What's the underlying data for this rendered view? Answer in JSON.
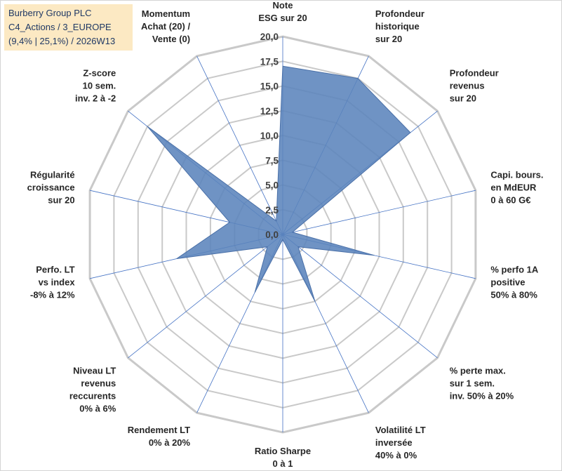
{
  "legend_box": {
    "line1": "Burberry Group PLC",
    "line2": "C4_Actions / 3_EUROPE",
    "line3": "(9,4% | 25,1%) / 2026W13"
  },
  "colors": {
    "fill": "#5b84bc",
    "stroke": "#4a70a8",
    "grid": "#c9c9c9",
    "spoke": "#4472c4",
    "title_bg": "#fce9c3",
    "title_text": "#1f3864"
  },
  "chart_data": {
    "type": "radar",
    "title": "Burberry Group PLC",
    "rlim": [
      0,
      20
    ],
    "ticks": [
      "0,0",
      "2,5",
      "5,0",
      "7,5",
      "10,0",
      "12,5",
      "15,0",
      "17,5",
      "20,0"
    ],
    "tick_values": [
      0,
      2.5,
      5,
      7.5,
      10,
      12.5,
      15,
      17.5,
      20
    ],
    "axes": [
      {
        "label": [
          "Note",
          "ESG sur 20"
        ],
        "value": 17.0
      },
      {
        "label": [
          "Profondeur",
          "historique",
          "sur 20"
        ],
        "value": 17.5
      },
      {
        "label": [
          "Profondeur",
          "revenus",
          "sur 20"
        ],
        "value": 16.5
      },
      {
        "label": [
          "Capi. bours.",
          "en MdEUR",
          "0 à 60 G€"
        ],
        "value": 1.0
      },
      {
        "label": [
          "% perfo 1A",
          "positive",
          "50% à 80%"
        ],
        "value": 9.5
      },
      {
        "label": [
          "% perte max.",
          "sur 1 sem.",
          "inv. 50% à 20%"
        ],
        "value": 2.0
      },
      {
        "label": [
          "Volatilité LT",
          "inversée",
          "40% à 0%"
        ],
        "value": 7.5
      },
      {
        "label": [
          "Ratio Sharpe",
          "0 à 1"
        ],
        "value": 0.5
      },
      {
        "label": [
          "Rendement LT",
          "0% à 20%"
        ],
        "value": 6.5
      },
      {
        "label": [
          "Niveau LT",
          "revenus",
          "reccurents",
          "0% à 6%"
        ],
        "value": 2.0
      },
      {
        "label": [
          "Perfo. LT",
          "vs index",
          "-8% à 12%"
        ],
        "value": 11.0
      },
      {
        "label": [
          "Régularité",
          "croissance",
          "sur 20"
        ],
        "value": 5.5
      },
      {
        "label": [
          "Z-score",
          "10 sem.",
          "inv. 2 à -2"
        ],
        "value": 17.5
      },
      {
        "label": [
          "Momentum",
          "Achat (20) /",
          "Vente (0)"
        ],
        "value": 1.5
      }
    ]
  }
}
